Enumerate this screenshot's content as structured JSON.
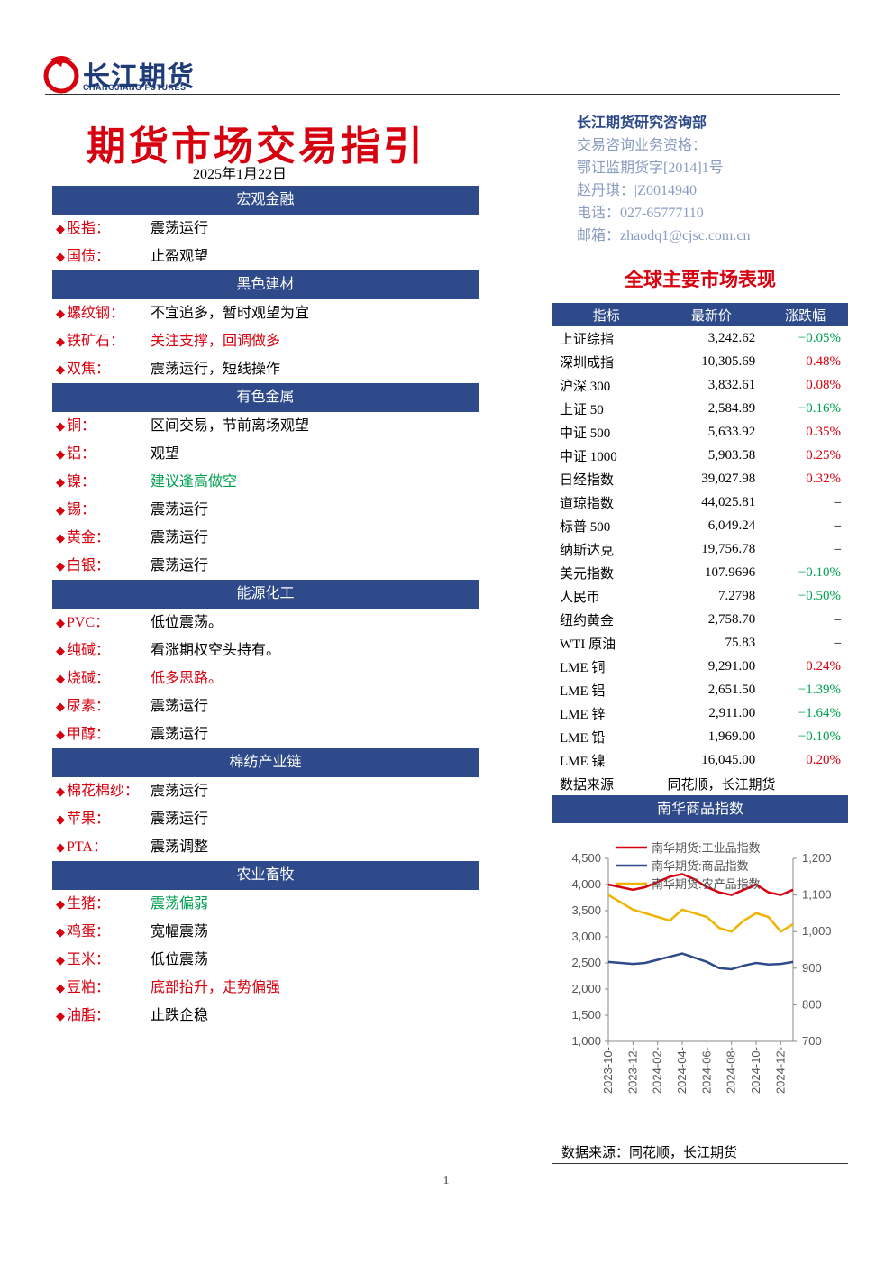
{
  "header": {
    "logo_cn": "长江期货",
    "logo_en": "CHANGJIANG FUTURES"
  },
  "title": "期货市场交易指引",
  "date": "2025年1月22日",
  "contact": {
    "dept": "长江期货研究咨询部",
    "lines": [
      "交易咨询业务资格：",
      "鄂证监期货字[2014]1号",
      "赵丹琪：|Z0014940",
      "电话：027-65777110",
      "邮箱：zhaodq1@cjsc.com.cn"
    ]
  },
  "sections": [
    {
      "title": "宏观金融",
      "items": [
        {
          "label": "股指：",
          "text": "震荡运行",
          "color": "#000000"
        },
        {
          "label": "国债：",
          "text": "止盈观望",
          "color": "#000000"
        }
      ]
    },
    {
      "title": "黑色建材",
      "items": [
        {
          "label": "螺纹钢：",
          "text": "不宜追多，暂时观望为宜",
          "color": "#000000"
        },
        {
          "label": "铁矿石：",
          "text": "关注支撑，回调做多",
          "color": "#d7000f"
        },
        {
          "label": "双焦：",
          "text": "震荡运行，短线操作",
          "color": "#000000"
        }
      ]
    },
    {
      "title": "有色金属",
      "items": [
        {
          "label": "铜：",
          "text": "区间交易，节前离场观望",
          "color": "#000000"
        },
        {
          "label": "铝：",
          "text": "观望",
          "color": "#000000"
        },
        {
          "label": "镍：",
          "text": "建议逢高做空",
          "color": "#00a050"
        },
        {
          "label": "锡：",
          "text": "震荡运行",
          "color": "#000000"
        },
        {
          "label": "黄金：",
          "text": "震荡运行",
          "color": "#000000"
        },
        {
          "label": "白银：",
          "text": "震荡运行",
          "color": "#000000"
        }
      ]
    },
    {
      "title": "能源化工",
      "items": [
        {
          "label": "PVC：",
          "text": "低位震荡。",
          "color": "#000000"
        },
        {
          "label": "纯碱：",
          "text": "看涨期权空头持有。",
          "color": "#000000"
        },
        {
          "label": "烧碱：",
          "text": "低多思路。",
          "color": "#d7000f"
        },
        {
          "label": "尿素：",
          "text": "震荡运行",
          "color": "#000000"
        },
        {
          "label": "甲醇：",
          "text": "震荡运行",
          "color": "#000000"
        }
      ]
    },
    {
      "title": "棉纺产业链",
      "items": [
        {
          "label": "棉花棉纱：",
          "text": "震荡运行",
          "color": "#000000"
        },
        {
          "label": "苹果：",
          "text": "震荡运行",
          "color": "#000000"
        },
        {
          "label": "PTA：",
          "text": "震荡调整",
          "color": "#000000"
        }
      ]
    },
    {
      "title": "农业畜牧",
      "items": [
        {
          "label": "生猪：",
          "text": "震荡偏弱",
          "color": "#00a050"
        },
        {
          "label": "鸡蛋：",
          "text": "宽幅震荡",
          "color": "#000000"
        },
        {
          "label": "玉米：",
          "text": "低位震荡",
          "color": "#000000"
        },
        {
          "label": "豆粕：",
          "text": "底部抬升，走势偏强",
          "color": "#d7000f"
        },
        {
          "label": "油脂：",
          "text": "止跌企稳",
          "color": "#000000"
        }
      ]
    }
  ],
  "market": {
    "title": "全球主要市场表现",
    "headers": [
      "指标",
      "最新价",
      "涨跌幅"
    ],
    "rows": [
      [
        "上证综指",
        "3,242.62",
        "−0.05%"
      ],
      [
        "深圳成指",
        "10,305.69",
        "0.48%"
      ],
      [
        "沪深 300",
        "3,832.61",
        "0.08%"
      ],
      [
        "上证 50",
        "2,584.89",
        "−0.16%"
      ],
      [
        "中证 500",
        "5,633.92",
        "0.35%"
      ],
      [
        "中证 1000",
        "5,903.58",
        "0.25%"
      ],
      [
        "日经指数",
        "39,027.98",
        "0.32%"
      ],
      [
        "道琼指数",
        "44,025.81",
        "–"
      ],
      [
        "标普 500",
        "6,049.24",
        "–"
      ],
      [
        "纳斯达克",
        "19,756.78",
        "–"
      ],
      [
        "美元指数",
        "107.9696",
        "−0.10%"
      ],
      [
        "人民币",
        "7.2798",
        "−0.50%"
      ],
      [
        "纽约黄金",
        "2,758.70",
        "–"
      ],
      [
        "WTI 原油",
        "75.83",
        "–"
      ],
      [
        "LME 铜",
        "9,291.00",
        "0.24%"
      ],
      [
        "LME 铝",
        "2,651.50",
        "−1.39%"
      ],
      [
        "LME 锌",
        "2,911.00",
        "−1.64%"
      ],
      [
        "LME 铅",
        "1,969.00",
        "−0.10%"
      ],
      [
        "LME 镍",
        "16,045.00",
        "0.20%"
      ]
    ],
    "source": [
      "数据来源",
      "同花顺，长江期货"
    ]
  },
  "chart_data": {
    "type": "line",
    "title": "南华商品指数",
    "x": [
      "2023-10",
      "2023-11",
      "2023-12",
      "2024-01",
      "2024-02",
      "2024-03",
      "2024-04",
      "2024-05",
      "2024-06",
      "2024-07",
      "2024-08",
      "2024-09",
      "2024-10",
      "2024-11",
      "2024-12",
      "2025-01"
    ],
    "xticks": [
      {
        "value": "2023-10",
        "label": "2023-10-"
      },
      {
        "value": "2023-12",
        "label": "2023-12-"
      },
      {
        "value": "2024-02",
        "label": "2024-02-"
      },
      {
        "value": "2024-04",
        "label": "2024-04-"
      },
      {
        "value": "2024-06",
        "label": "2024-06-"
      },
      {
        "value": "2024-08",
        "label": "2024-08-"
      },
      {
        "value": "2024-10",
        "label": "2024-10-"
      },
      {
        "value": "2024-12",
        "label": "2024-12-"
      }
    ],
    "ylim": [
      1000,
      4500
    ],
    "yticks": [
      {
        "value": 1000,
        "label": "1,000"
      },
      {
        "value": 1500,
        "label": "1,500"
      },
      {
        "value": 2000,
        "label": "2,000"
      },
      {
        "value": 2500,
        "label": "2,500"
      },
      {
        "value": 3000,
        "label": "3,000"
      },
      {
        "value": 3500,
        "label": "3,500"
      },
      {
        "value": 4000,
        "label": "4,000"
      },
      {
        "value": 4500,
        "label": "4,500"
      }
    ],
    "y2lim": [
      700,
      1200
    ],
    "y2ticks": [
      700,
      800,
      900,
      {
        "value": 1000,
        "label": "1,000"
      },
      {
        "value": 1100,
        "label": "1,100"
      },
      {
        "value": 1200,
        "label": "1,200"
      }
    ],
    "series": [
      {
        "name": "南华期货:工业品指数",
        "color": "#d7000f",
        "values": [
          4000,
          3950,
          3900,
          3950,
          4050,
          4150,
          4200,
          4100,
          3950,
          3850,
          3800,
          3900,
          4000,
          3850,
          3800,
          3900
        ]
      },
      {
        "name": "南华期货:商品指数",
        "color": "#2e4a8a",
        "values": [
          2520,
          2500,
          2480,
          2500,
          2560,
          2620,
          2680,
          2600,
          2520,
          2400,
          2380,
          2450,
          2500,
          2470,
          2480,
          2520
        ]
      },
      {
        "name": "南华期货:农产品指数",
        "color": "#f0b400",
        "axis": "y2",
        "values": [
          1100,
          1080,
          1060,
          1050,
          1040,
          1030,
          1060,
          1050,
          1040,
          1010,
          1000,
          1030,
          1050,
          1040,
          1000,
          1020
        ]
      }
    ],
    "source": "数据来源：同花顺，长江期货"
  },
  "page_number": "1"
}
